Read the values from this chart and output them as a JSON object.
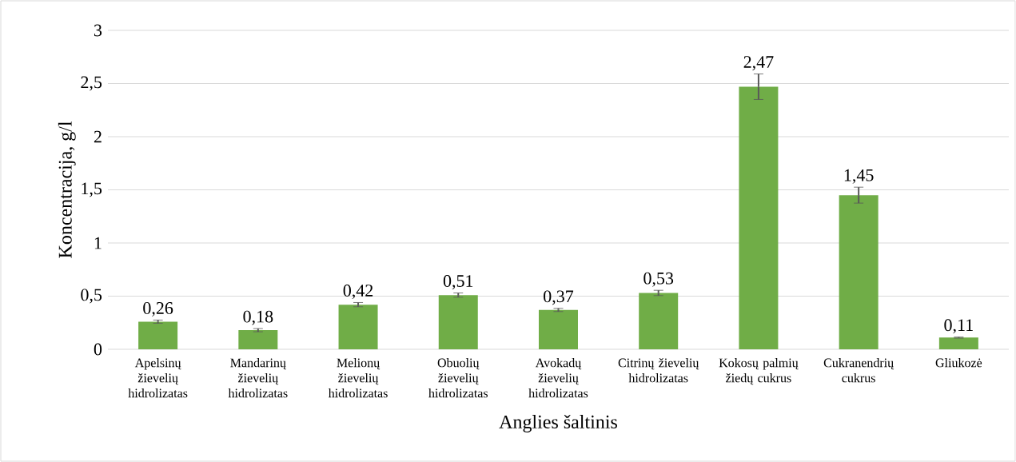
{
  "chart_data": {
    "type": "bar",
    "xlabel": "Anglies šaltinis",
    "ylabel": "Koncentracija, g/l",
    "categories": [
      "Apelsinų žievelių hidrolizatas",
      "Mandarinų žievelių hidrolizatas",
      "Melionų žievelių hidrolizatas",
      "Obuolių žievelių hidrolizatas",
      "Avokadų žievelių hidrolizatas",
      "Citrinų žievelių hidrolizatas",
      "Kokosų palmių žiedų cukrus",
      "Cukranendrių cukrus",
      "Gliukozė"
    ],
    "values": [
      0.26,
      0.18,
      0.42,
      0.51,
      0.37,
      0.53,
      2.47,
      1.45,
      0.11
    ],
    "errors": [
      0.015,
      0.015,
      0.02,
      0.02,
      0.015,
      0.025,
      0.12,
      0.075,
      0.005
    ],
    "value_labels": [
      "0,26",
      "0,18",
      "0,42",
      "0,51",
      "0,37",
      "0,53",
      "2,47",
      "1,45",
      "0,11"
    ],
    "color": "#70ad47",
    "ylim": [
      0,
      3
    ],
    "yticks": [
      0,
      {
        "value": 0.5,
        "label": "0,5"
      },
      1,
      {
        "value": 1.5,
        "label": "1,5"
      },
      2,
      {
        "value": 2.5,
        "label": "2,5"
      },
      3
    ],
    "grid": "y"
  }
}
